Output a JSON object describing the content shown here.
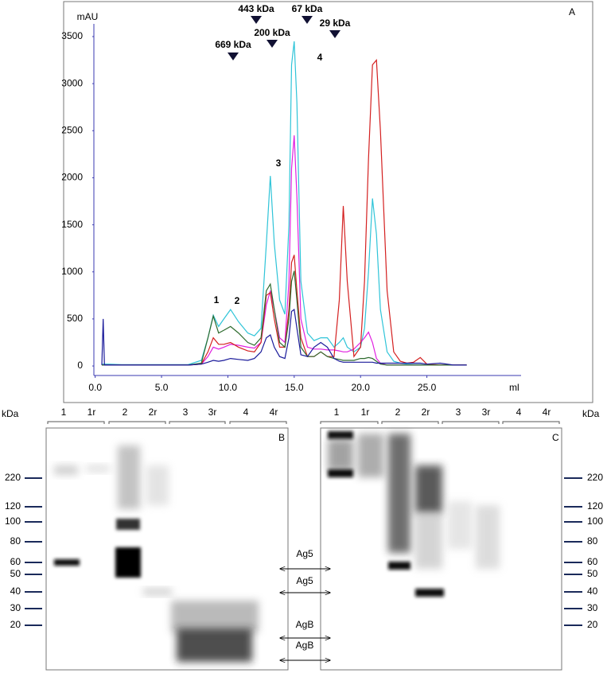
{
  "chart_data": {
    "type": "line",
    "panel_label": "A",
    "y_label": "mAU",
    "x_label": "ml",
    "annotations": [
      "1",
      "2",
      "3",
      "4",
      "669 kDa",
      "443 kDa",
      "200 kDa",
      "67 kDa",
      "29 kDa"
    ],
    "xlim": [
      -0.1,
      32.1
    ],
    "ylim": [
      -101,
      3635
    ],
    "xticks": [
      {
        "value": 0,
        "label": "0.0"
      },
      {
        "value": 5,
        "label": "5.0"
      },
      {
        "value": 10,
        "label": "10.0"
      },
      {
        "value": 15,
        "label": "15.0"
      },
      {
        "value": 20,
        "label": "20.0"
      },
      {
        "value": 25,
        "label": "25.0"
      }
    ],
    "yticks": [
      0,
      500,
      1000,
      1500,
      2000,
      2500,
      3000,
      3500
    ],
    "grid": false,
    "x": [
      0.5,
      0.6,
      0.7,
      1,
      2,
      4,
      6,
      7,
      8,
      8.5,
      8.9,
      9.3,
      9.7,
      10.2,
      10.8,
      11.5,
      12,
      12.5,
      12.9,
      13.2,
      13.5,
      13.9,
      14.3,
      14.6,
      14.8,
      15.0,
      15.2,
      15.5,
      16,
      16.5,
      17,
      17.5,
      18,
      18.4,
      18.7,
      19,
      19.5,
      20,
      20.3,
      20.6,
      20.9,
      21.2,
      21.5,
      22,
      22.5,
      23,
      23.5,
      24,
      24.5,
      25,
      26,
      27,
      28
    ],
    "series": [
      {
        "color": "#2fc4d8",
        "values": [
          20,
          20,
          20,
          20,
          15,
          15,
          15,
          15,
          60,
          300,
          540,
          420,
          500,
          600,
          470,
          350,
          320,
          400,
          1300,
          2020,
          1300,
          700,
          550,
          1500,
          3200,
          3450,
          2800,
          900,
          350,
          270,
          300,
          300,
          200,
          250,
          300,
          200,
          150,
          200,
          400,
          1000,
          1780,
          1400,
          600,
          150,
          50,
          30,
          20,
          15,
          15,
          10,
          10,
          10,
          10
        ]
      },
      {
        "color": "#e020e0",
        "values": [
          10,
          10,
          10,
          10,
          10,
          10,
          10,
          10,
          20,
          100,
          200,
          180,
          200,
          230,
          220,
          200,
          190,
          250,
          650,
          800,
          600,
          300,
          250,
          900,
          2100,
          2450,
          1800,
          500,
          200,
          180,
          180,
          170,
          170,
          160,
          150,
          150,
          180,
          250,
          300,
          360,
          250,
          80,
          30,
          10,
          10,
          10,
          10,
          10,
          10,
          10,
          10,
          10,
          10
        ]
      },
      {
        "color": "#d42020",
        "values": [
          10,
          10,
          10,
          10,
          10,
          10,
          10,
          10,
          20,
          150,
          300,
          230,
          230,
          250,
          200,
          160,
          150,
          250,
          750,
          780,
          500,
          200,
          200,
          600,
          1100,
          1180,
          800,
          300,
          100,
          100,
          150,
          100,
          100,
          700,
          1700,
          900,
          100,
          200,
          900,
          2200,
          3200,
          3250,
          2500,
          800,
          150,
          50,
          30,
          40,
          90,
          20,
          10,
          10,
          10
        ]
      },
      {
        "color": "#2e6b2e",
        "values": [
          10,
          10,
          10,
          10,
          10,
          10,
          10,
          10,
          30,
          300,
          530,
          350,
          380,
          420,
          350,
          250,
          220,
          300,
          800,
          870,
          600,
          250,
          200,
          500,
          900,
          1010,
          700,
          200,
          100,
          100,
          150,
          100,
          80,
          70,
          60,
          60,
          60,
          80,
          80,
          90,
          80,
          50,
          20,
          10,
          10,
          10,
          10,
          10,
          10,
          10,
          10,
          10,
          10
        ]
      },
      {
        "color": "#1a1a9a",
        "values": [
          10,
          500,
          10,
          10,
          10,
          10,
          10,
          10,
          20,
          40,
          60,
          50,
          60,
          80,
          70,
          60,
          80,
          150,
          300,
          330,
          200,
          100,
          80,
          300,
          580,
          600,
          400,
          120,
          100,
          200,
          250,
          200,
          80,
          50,
          40,
          40,
          40,
          40,
          40,
          40,
          40,
          30,
          30,
          30,
          30,
          30,
          30,
          30,
          30,
          20,
          30,
          10,
          10
        ]
      }
    ]
  },
  "blots": {
    "unit": "kDa",
    "markers": [
      220,
      120,
      100,
      80,
      60,
      50,
      40,
      30,
      20
    ],
    "panels": [
      {
        "label": "B",
        "lanes": [
          "1",
          "1r",
          "2",
          "2r",
          "3",
          "3r",
          "4",
          "4r"
        ]
      },
      {
        "label": "C",
        "lanes": [
          "1",
          "1r",
          "2",
          "2r",
          "3",
          "3r",
          "4",
          "4r"
        ]
      }
    ],
    "antigens": [
      "Ag5",
      "Ag5",
      "AgB",
      "AgB"
    ]
  }
}
